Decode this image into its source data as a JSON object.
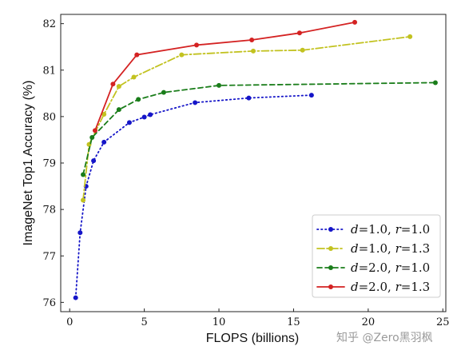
{
  "chart_data": {
    "type": "line",
    "xlabel": "FLOPS (billions)",
    "ylabel": "ImageNet Top1 Accuracy (%)",
    "xlim": [
      -0.6,
      25.2
    ],
    "ylim": [
      75.8,
      82.2
    ],
    "xticks": [
      0,
      5,
      10,
      15,
      20,
      25
    ],
    "yticks": [
      76,
      77,
      78,
      79,
      80,
      81,
      82
    ],
    "grid": false,
    "legend_position": "bottom-right",
    "series": [
      {
        "legend": {
          "v1": "d",
          "eq1": "=1.0, ",
          "v2": "r",
          "eq2": "=1.0"
        },
        "color": "#1515c8",
        "dash": "1.5,3.5",
        "points": [
          [
            0.4,
            76.1
          ],
          [
            0.7,
            77.5
          ],
          [
            1.1,
            78.5
          ],
          [
            1.6,
            79.05
          ],
          [
            2.3,
            79.45
          ],
          [
            4.0,
            79.87
          ],
          [
            5.0,
            79.99
          ],
          [
            5.4,
            80.04
          ],
          [
            8.4,
            80.3
          ],
          [
            12.0,
            80.4
          ],
          [
            16.2,
            80.46
          ]
        ]
      },
      {
        "legend": {
          "v1": "d",
          "eq1": "=1.0, ",
          "v2": "r",
          "eq2": "=1.3"
        },
        "color": "#c2c220",
        "dash": "9,3,2,3",
        "points": [
          [
            0.9,
            78.2
          ],
          [
            1.3,
            79.4
          ],
          [
            2.3,
            80.05
          ],
          [
            3.3,
            80.65
          ],
          [
            4.3,
            80.85
          ],
          [
            7.5,
            81.33
          ],
          [
            12.3,
            81.41
          ],
          [
            15.6,
            81.43
          ],
          [
            22.8,
            81.72
          ]
        ]
      },
      {
        "legend": {
          "v1": "d",
          "eq1": "=2.0, ",
          "v2": "r",
          "eq2": "=1.0"
        },
        "color": "#1a7d1a",
        "dash": "6,4",
        "points": [
          [
            0.9,
            78.75
          ],
          [
            1.5,
            79.55
          ],
          [
            3.3,
            80.15
          ],
          [
            4.6,
            80.37
          ],
          [
            6.3,
            80.52
          ],
          [
            10.0,
            80.67
          ],
          [
            24.5,
            80.73
          ]
        ]
      },
      {
        "legend": {
          "v1": "d",
          "eq1": "=2.0, ",
          "v2": "r",
          "eq2": "=1.3"
        },
        "color": "#d42222",
        "dash": "",
        "points": [
          [
            1.7,
            79.7
          ],
          [
            2.9,
            80.7
          ],
          [
            4.5,
            81.33
          ],
          [
            8.5,
            81.54
          ],
          [
            12.2,
            81.65
          ],
          [
            15.4,
            81.8
          ],
          [
            19.1,
            82.03
          ]
        ]
      }
    ]
  },
  "watermark": "知乎 @Zero黑羽枫"
}
